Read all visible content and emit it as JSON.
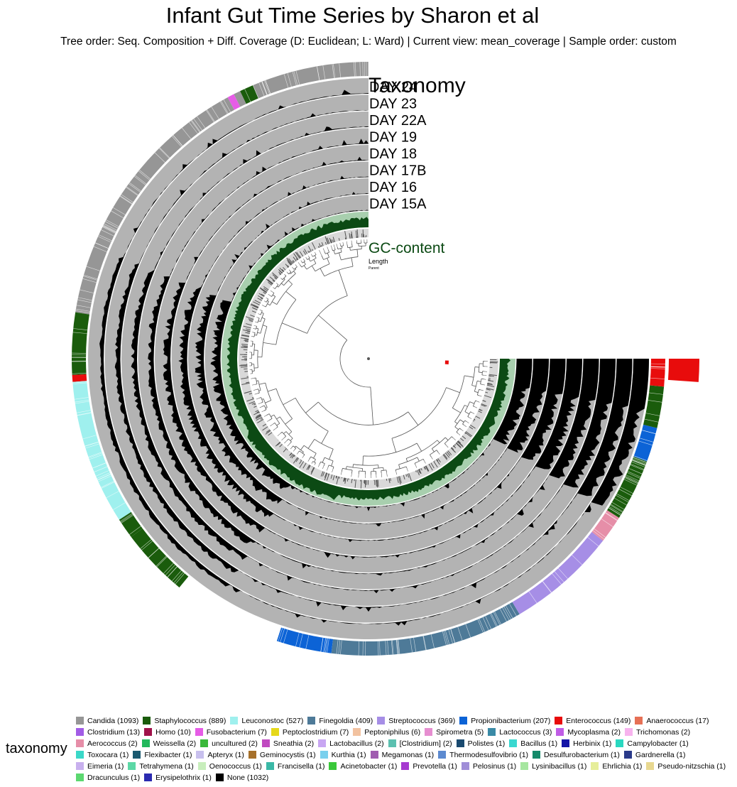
{
  "title": "Infant Gut Time Series by Sharon et al",
  "subtitle": "Tree order: Seq. Composition + Diff. Coverage (D: Euclidean; L: Ward) | Current view: mean_coverage | Sample order: custom",
  "layers": {
    "taxonomy": "Taxonomy",
    "samples": [
      "DAY 24",
      "DAY 23",
      "DAY 22A",
      "DAY 19",
      "DAY 18",
      "DAY 17B",
      "DAY 16",
      "DAY 15A"
    ],
    "gc": "GC-content",
    "length": "Length",
    "parent": "Parent"
  },
  "colors": {
    "coverage_bg": "#b3b3b3",
    "coverage_fg": "#000000",
    "gc_bg": "#a8cfae",
    "gc_fg": "#0c4a14",
    "gc_label": "#0c4a14"
  },
  "legend": {
    "title": "taxonomy",
    "rows": [
      [
        {
          "name": "Candida (1093)",
          "color": "#969696"
        },
        {
          "name": "Staphylococcus (889)",
          "color": "#1a5c0c"
        },
        {
          "name": "Leuconostoc (527)",
          "color": "#9ff0ee"
        },
        {
          "name": "Finegoldia (409)",
          "color": "#4e7a98"
        },
        {
          "name": "Streptococcus (369)",
          "color": "#a68ee6"
        },
        {
          "name": "Propionibacterium (207)",
          "color": "#0c63d6"
        },
        {
          "name": "Enterococcus (149)",
          "color": "#e80c0c"
        },
        {
          "name": "Anaerococcus (17)",
          "color": "#e67055"
        }
      ],
      [
        {
          "name": "Clostridium (13)",
          "color": "#a25ce6"
        },
        {
          "name": "Homo (10)",
          "color": "#a0124a"
        },
        {
          "name": "Fusobacterium (7)",
          "color": "#e65ce6"
        },
        {
          "name": "Peptoclostridium (7)",
          "color": "#e6d81a"
        },
        {
          "name": "Peptoniphilus (6)",
          "color": "#f2c2a0"
        },
        {
          "name": "Spirometra (5)",
          "color": "#e68ed0"
        },
        {
          "name": "Lactococcus (3)",
          "color": "#3a8aa6"
        },
        {
          "name": "Mycoplasma (2)",
          "color": "#c05ce6"
        },
        {
          "name": "Trichomonas (2)",
          "color": "#f7b3ee"
        }
      ],
      [
        {
          "name": "Aerococcus (2)",
          "color": "#e68ea8"
        },
        {
          "name": "Weissella (2)",
          "color": "#22b85c"
        },
        {
          "name": "uncultured (2)",
          "color": "#3ab83a"
        },
        {
          "name": "Sneathia (2)",
          "color": "#c04ac0"
        },
        {
          "name": "Lactobacillus (2)",
          "color": "#c8a6f2"
        },
        {
          "name": "[Clostridium] (2)",
          "color": "#5cc0b0"
        },
        {
          "name": "Polistes (1)",
          "color": "#1a4a70"
        },
        {
          "name": "Bacillus (1)",
          "color": "#3ad8d0"
        },
        {
          "name": "Herbinix (1)",
          "color": "#1414a6"
        },
        {
          "name": "Campylobacter (1)",
          "color": "#2ad8c0"
        }
      ],
      [
        {
          "name": "Toxocara (1)",
          "color": "#3ad8c8"
        },
        {
          "name": "Flexibacter (1)",
          "color": "#1a5a70"
        },
        {
          "name": "Apteryx (1)",
          "color": "#c8c0ee"
        },
        {
          "name": "Geminocystis (1)",
          "color": "#a6702a"
        },
        {
          "name": "Kurthia (1)",
          "color": "#7ad0ee"
        },
        {
          "name": "Megamonas (1)",
          "color": "#a05cb0"
        },
        {
          "name": "Thermodesulfovibrio (1)",
          "color": "#5c8ad0"
        },
        {
          "name": "Desulfurobacterium (1)",
          "color": "#148a6a"
        },
        {
          "name": "Gardnerella (1)",
          "color": "#2a3a8a"
        }
      ],
      [
        {
          "name": "Eimeria (1)",
          "color": "#c8b0ee"
        },
        {
          "name": "Tetrahymena (1)",
          "color": "#5cd8a6"
        },
        {
          "name": "Oenococcus (1)",
          "color": "#c8eebc"
        },
        {
          "name": "Francisella (1)",
          "color": "#3ab8a6"
        },
        {
          "name": "Acinetobacter (1)",
          "color": "#3ac83a"
        },
        {
          "name": "Prevotella (1)",
          "color": "#a63ad0"
        },
        {
          "name": "Pelosinus (1)",
          "color": "#a08ed8"
        },
        {
          "name": "Lysinibacillus (1)",
          "color": "#a6e6a0"
        },
        {
          "name": "Ehrlichia (1)",
          "color": "#e6ee9a"
        },
        {
          "name": "Pseudo-nitzschia (1)",
          "color": "#e8d890"
        }
      ],
      [
        {
          "name": "Dracunculus (1)",
          "color": "#5cd870"
        },
        {
          "name": "Erysipelothrix (1)",
          "color": "#2a2ab0"
        },
        {
          "name": "None (1032)",
          "color": "#000000"
        }
      ]
    ]
  }
}
